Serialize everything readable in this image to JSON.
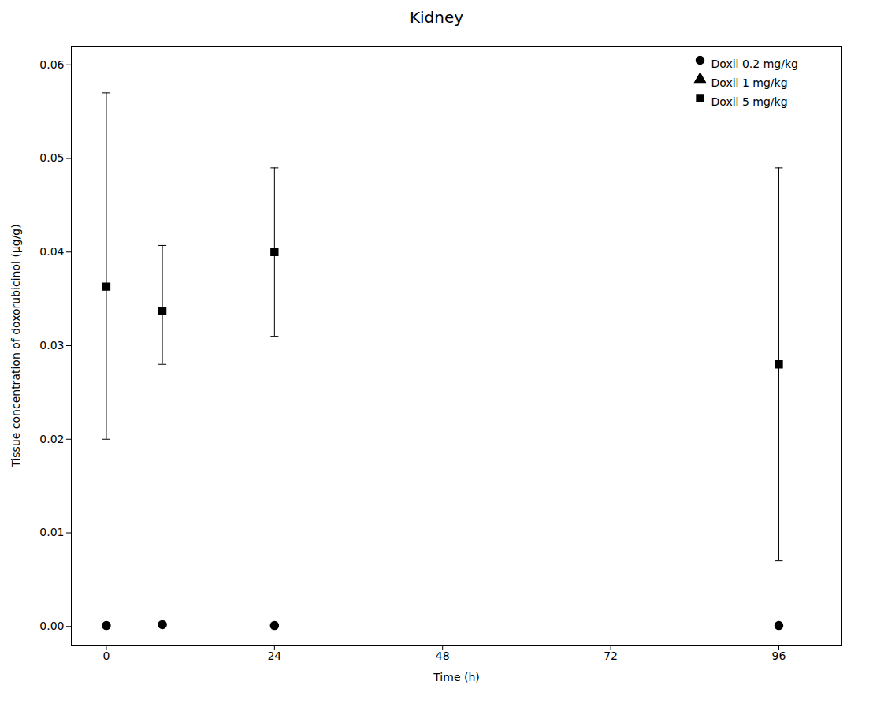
{
  "chart_data": {
    "type": "scatter",
    "title": "Kidney",
    "x_label": "Time (h)",
    "y_label": "Tissue concentration of doxorubicinol (μg/g)",
    "xlim": [
      -5,
      105
    ],
    "ylim": [
      -0.002,
      0.062
    ],
    "xticks": [
      0,
      24,
      48,
      72,
      96
    ],
    "yticks": [
      {
        "value": 0,
        "label": "0.00"
      },
      0.01,
      0.02,
      0.03,
      0.04,
      0.05,
      0.06
    ],
    "grid": false,
    "legend": "upper right",
    "series": [
      {
        "name": "Doxil 0.2 mg/kg",
        "marker": "circle",
        "color": "black",
        "x": [
          0,
          8,
          24,
          96
        ],
        "values": [
          0.0001,
          0.0002,
          0.0001,
          0.0001
        ],
        "yerr_upper": [
          0.0001,
          0.0001,
          0.0001,
          0.0001
        ],
        "yerr_lower": [
          0.0001,
          0.0001,
          0.0001,
          0.0001
        ]
      },
      {
        "name": "Doxil 1 mg/kg",
        "marker": "triangle",
        "color": "black",
        "x": [],
        "values": [],
        "yerr_upper": [],
        "yerr_lower": []
      },
      {
        "name": "Doxil 5 mg/kg",
        "marker": "square",
        "color": "black",
        "x": [
          0,
          8,
          24,
          96
        ],
        "values": [
          0.0363,
          0.0337,
          0.04,
          0.028
        ],
        "yerr_upper": [
          0.0207,
          0.007,
          0.009,
          0.021
        ],
        "yerr_lower": [
          0.0163,
          0.0057,
          0.009,
          0.021
        ]
      }
    ]
  }
}
